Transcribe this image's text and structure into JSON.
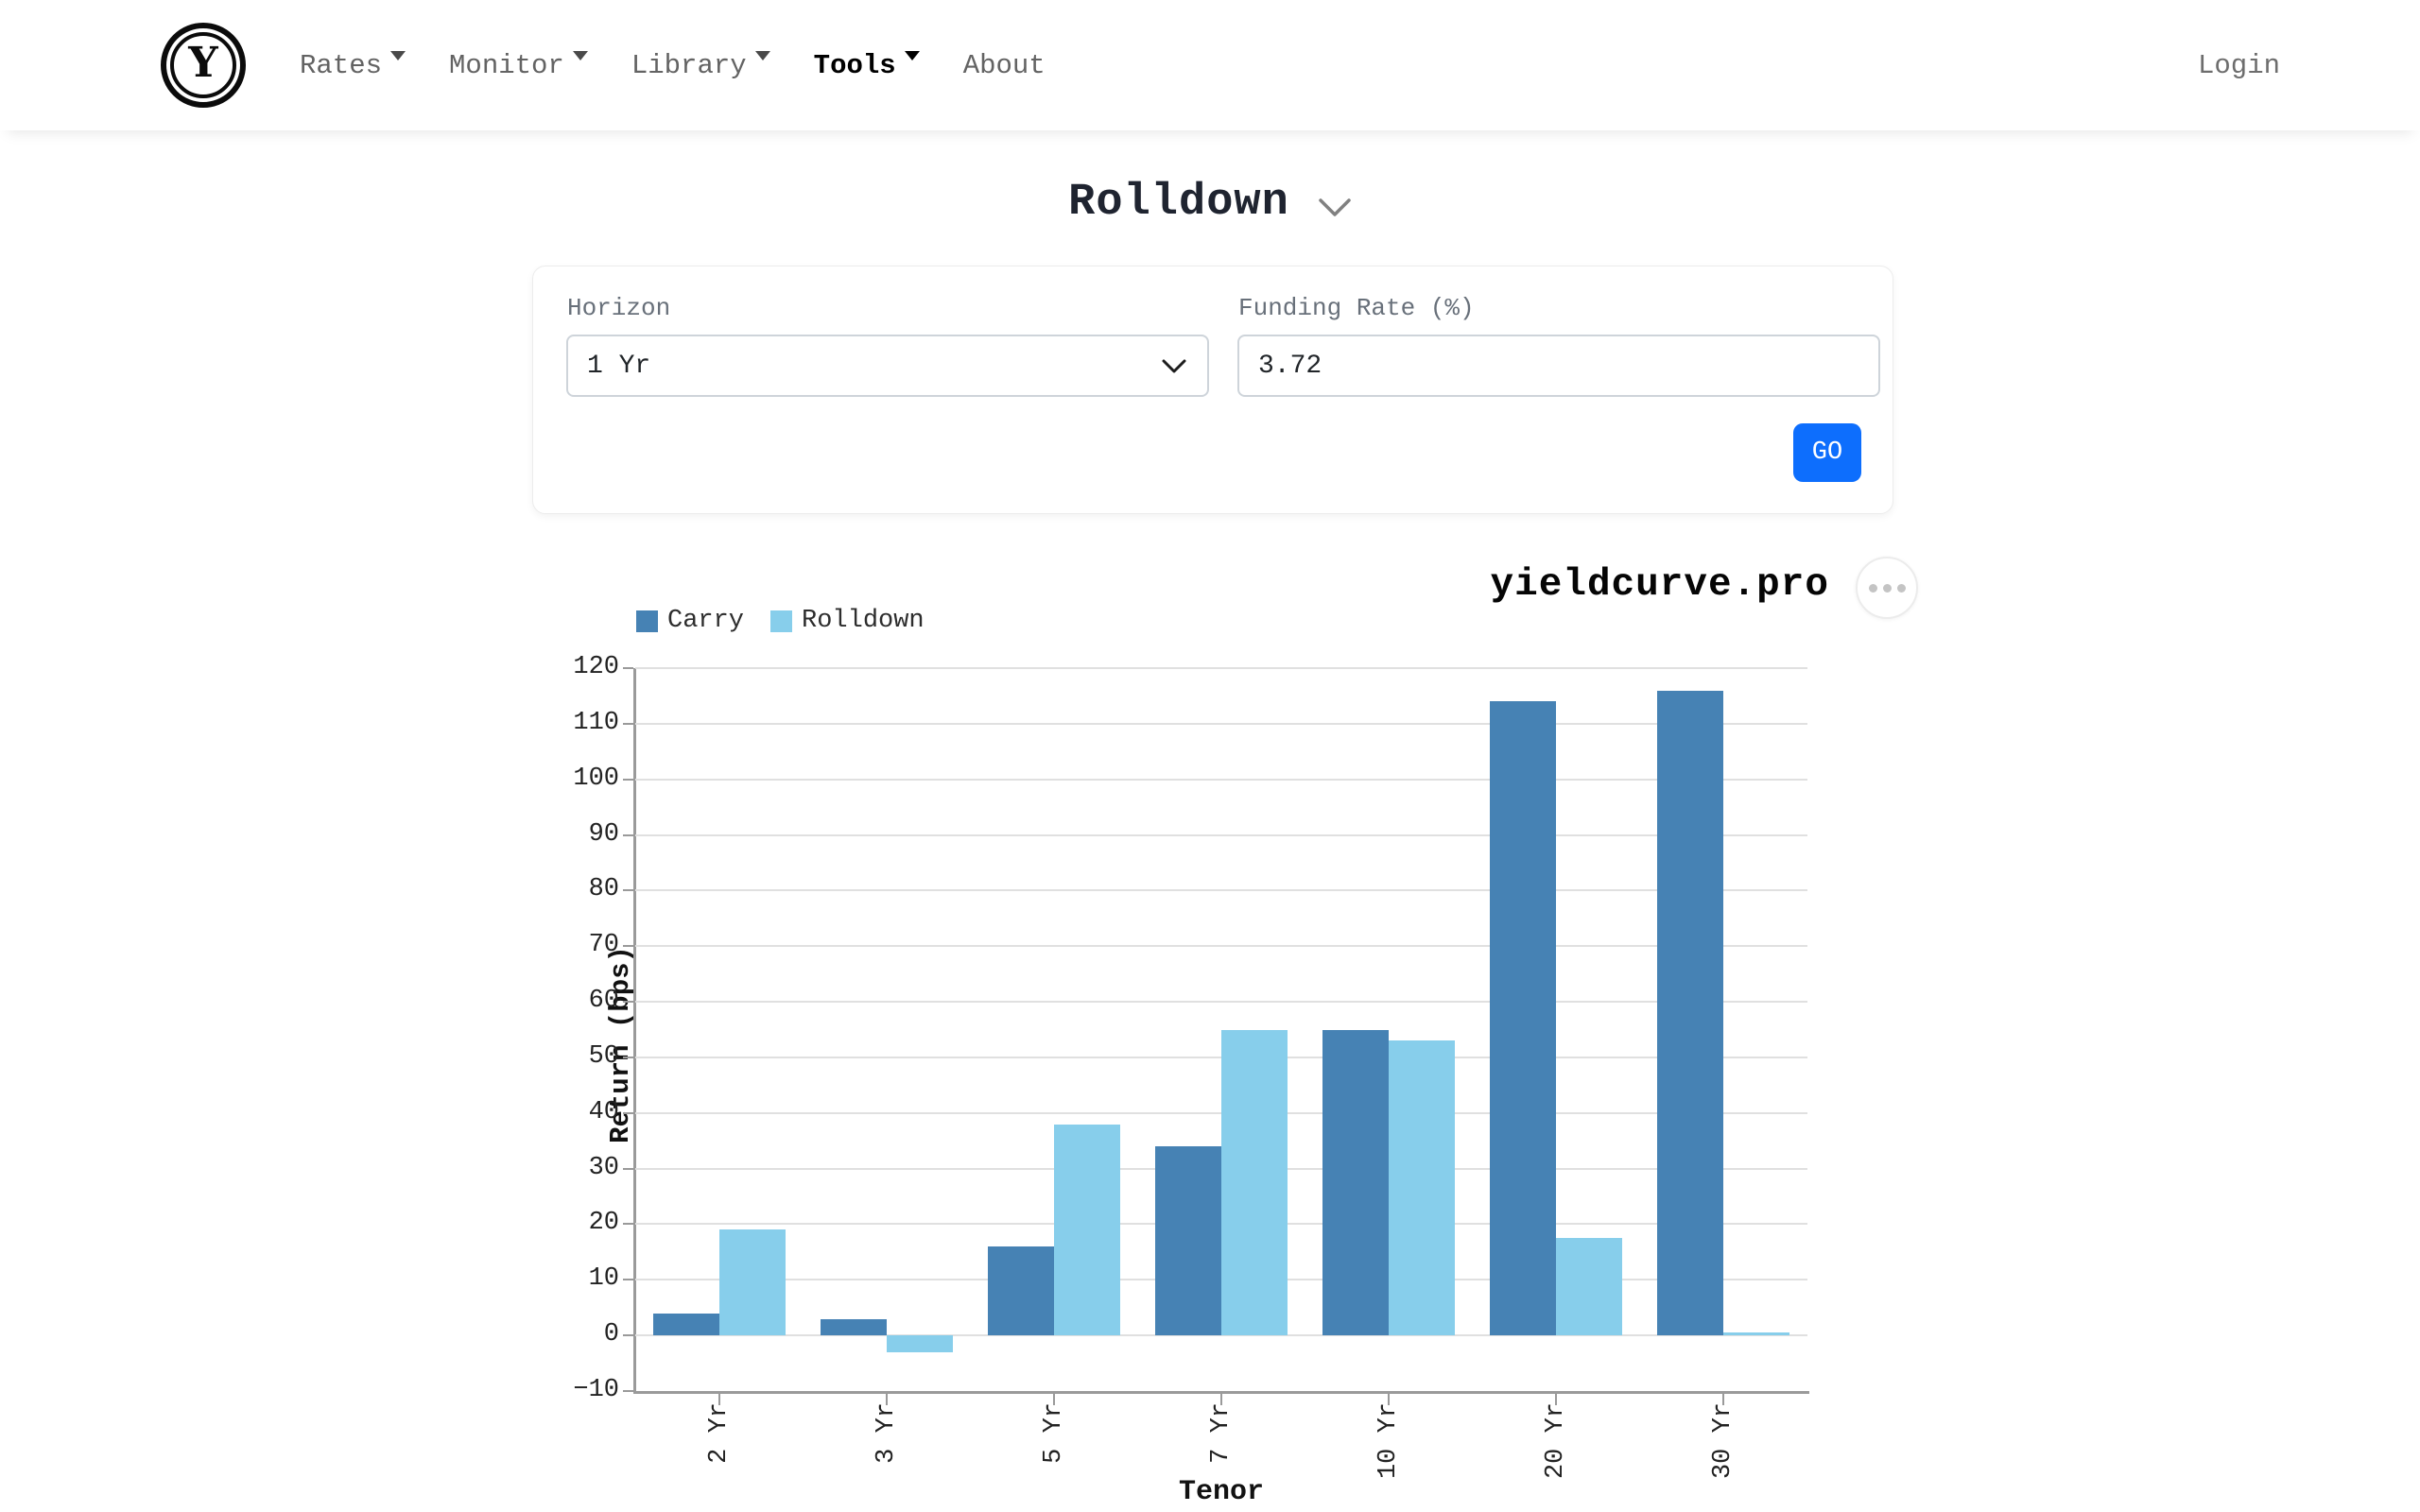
{
  "nav": {
    "brand_letter": "Y",
    "items": [
      {
        "label": "Rates",
        "caret": true,
        "active": false
      },
      {
        "label": "Monitor",
        "caret": true,
        "active": false
      },
      {
        "label": "Library",
        "caret": true,
        "active": false
      },
      {
        "label": "Tools",
        "caret": true,
        "active": true
      },
      {
        "label": "About",
        "caret": false,
        "active": false
      }
    ],
    "login_label": "Login"
  },
  "page": {
    "title": "Rolldown"
  },
  "form": {
    "horizon_label": "Horizon",
    "horizon_value": "1 Yr",
    "funding_label": "Funding Rate (%)",
    "funding_value": "3.72",
    "go_label": "GO"
  },
  "chart_header": {
    "brand_title": "yieldcurve.pro",
    "menu_icon": "ellipsis-icon"
  },
  "colors": {
    "carry": "#4682B4",
    "rolldown": "#87CEEB",
    "primary_button": "#0d6efd",
    "gridline": "#e0e0e0",
    "axis": "#9a9a9a"
  },
  "chart_data": {
    "type": "bar",
    "title": "yieldcurve.pro",
    "categories": [
      "2 Yr",
      "3 Yr",
      "5 Yr",
      "7 Yr",
      "10 Yr",
      "20 Yr",
      "30 Yr"
    ],
    "series": [
      {
        "name": "Carry",
        "color": "#4682B4",
        "values": [
          4,
          3,
          16,
          34,
          55,
          114,
          116
        ]
      },
      {
        "name": "Rolldown",
        "color": "#87CEEB",
        "values": [
          19,
          -3,
          38,
          55,
          53,
          17.5,
          0.5
        ]
      }
    ],
    "xlabel": "Tenor",
    "ylabel": "Return (bps)",
    "ylim": [
      -10,
      120
    ],
    "ytick_step": 10,
    "grid": true,
    "legend_position": "top-left"
  }
}
